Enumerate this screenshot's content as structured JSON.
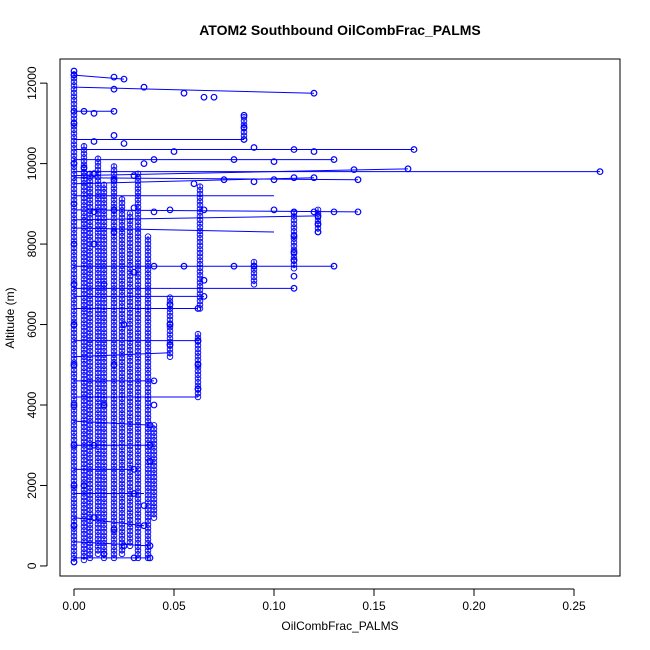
{
  "chart_data": {
    "type": "scatter",
    "title": "ATOM2 Southbound OilCombFrac_PALMS",
    "xlabel": "OilCombFrac_PALMS",
    "ylabel": "Altitude (m)",
    "xlim": [
      -0.007,
      0.273
    ],
    "ylim": [
      -250,
      12600
    ],
    "xticks": [
      0.0,
      0.05,
      0.1,
      0.15,
      0.2,
      0.25
    ],
    "xtick_labels": [
      "0.00",
      "0.05",
      "0.10",
      "0.15",
      "0.20",
      "0.25"
    ],
    "yticks": [
      0,
      2000,
      4000,
      6000,
      8000,
      10000,
      12000
    ],
    "ytick_labels": [
      "0",
      "2000",
      "4000",
      "6000",
      "8000",
      "10000",
      "12000"
    ],
    "grid": false,
    "legend": "none",
    "series_color": "#0000ff",
    "marker": "open-circle",
    "points": [
      [
        0.0,
        12300
      ],
      [
        0.0,
        12200
      ],
      [
        0.02,
        12150
      ],
      [
        0.025,
        12100
      ],
      [
        0.035,
        11900
      ],
      [
        0.02,
        11850
      ],
      [
        0.12,
        11750
      ],
      [
        0.055,
        11750
      ],
      [
        0.065,
        11650
      ],
      [
        0.07,
        11650
      ],
      [
        0.0,
        11300
      ],
      [
        0.005,
        11300
      ],
      [
        0.01,
        11250
      ],
      [
        0.02,
        11300
      ],
      [
        0.085,
        11200
      ],
      [
        0.085,
        10900
      ],
      [
        0.085,
        10600
      ],
      [
        0.01,
        10550
      ],
      [
        0.02,
        10700
      ],
      [
        0.025,
        10500
      ],
      [
        0.05,
        10300
      ],
      [
        0.09,
        10400
      ],
      [
        0.11,
        10350
      ],
      [
        0.12,
        10300
      ],
      [
        0.17,
        10350
      ],
      [
        0.13,
        10100
      ],
      [
        0.08,
        10100
      ],
      [
        0.1,
        10050
      ],
      [
        0.04,
        10100
      ],
      [
        0.035,
        10000
      ],
      [
        0.263,
        9800
      ],
      [
        0.167,
        9870
      ],
      [
        0.14,
        9850
      ],
      [
        0.12,
        9650
      ],
      [
        0.11,
        9650
      ],
      [
        0.1,
        9600
      ],
      [
        0.142,
        9600
      ],
      [
        0.09,
        9550
      ],
      [
        0.075,
        9600
      ],
      [
        0.06,
        9500
      ],
      [
        0.03,
        9700
      ],
      [
        0.02,
        9600
      ],
      [
        0.01,
        9750
      ],
      [
        0.005,
        9900
      ],
      [
        0.142,
        8800
      ],
      [
        0.13,
        8800
      ],
      [
        0.12,
        8800
      ],
      [
        0.11,
        8800
      ],
      [
        0.1,
        8850
      ],
      [
        0.065,
        8850
      ],
      [
        0.048,
        8850
      ],
      [
        0.04,
        8800
      ],
      [
        0.03,
        8900
      ],
      [
        0.02,
        8850
      ],
      [
        0.01,
        8800
      ],
      [
        0.122,
        8700
      ],
      [
        0.122,
        8500
      ],
      [
        0.122,
        8300
      ],
      [
        0.11,
        8200
      ],
      [
        0.11,
        7800
      ],
      [
        0.11,
        7600
      ],
      [
        0.13,
        7450
      ],
      [
        0.09,
        7450
      ],
      [
        0.08,
        7450
      ],
      [
        0.055,
        7450
      ],
      [
        0.04,
        7450
      ],
      [
        0.11,
        7200
      ],
      [
        0.11,
        6900
      ],
      [
        0.065,
        7100
      ],
      [
        0.065,
        6700
      ],
      [
        0.062,
        6400
      ],
      [
        0.048,
        6500
      ],
      [
        0.048,
        6000
      ],
      [
        0.048,
        5500
      ],
      [
        0.062,
        5600
      ],
      [
        0.062,
        5000
      ],
      [
        0.062,
        4400
      ],
      [
        0.04,
        4600
      ],
      [
        0.04,
        4000
      ],
      [
        0.038,
        3500
      ],
      [
        0.038,
        3000
      ],
      [
        0.038,
        2600
      ],
      [
        0.03,
        2400
      ],
      [
        0.03,
        1800
      ],
      [
        0.035,
        1500
      ],
      [
        0.035,
        1000
      ],
      [
        0.038,
        500
      ],
      [
        0.038,
        200
      ],
      [
        0.03,
        200
      ],
      [
        0.025,
        500
      ],
      [
        0.02,
        900
      ],
      [
        0.015,
        300
      ],
      [
        0.01,
        1200
      ],
      [
        0.005,
        2000
      ],
      [
        0.01,
        3000
      ],
      [
        0.015,
        4000
      ],
      [
        0.02,
        5000
      ],
      [
        0.025,
        6000
      ],
      [
        0.015,
        7000
      ],
      [
        0.01,
        8000
      ],
      [
        0.02,
        8300
      ],
      [
        0.03,
        7300
      ],
      [
        0.0,
        100
      ],
      [
        0.0,
        1000
      ],
      [
        0.0,
        2000
      ],
      [
        0.0,
        3000
      ],
      [
        0.0,
        4000
      ],
      [
        0.0,
        5000
      ],
      [
        0.0,
        6000
      ],
      [
        0.0,
        7000
      ],
      [
        0.0,
        8000
      ],
      [
        0.0,
        9000
      ],
      [
        0.0,
        10000
      ],
      [
        0.0,
        11000
      ]
    ],
    "track_segments": [
      [
        [
          0.0,
          12200
        ],
        [
          0.025,
          12100
        ]
      ],
      [
        [
          0.0,
          11900
        ],
        [
          0.12,
          11750
        ]
      ],
      [
        [
          0.0,
          11300
        ],
        [
          0.02,
          11300
        ]
      ],
      [
        [
          0.0,
          10600
        ],
        [
          0.085,
          10600
        ]
      ],
      [
        [
          0.0,
          10350
        ],
        [
          0.17,
          10350
        ]
      ],
      [
        [
          0.0,
          10100
        ],
        [
          0.13,
          10100
        ]
      ],
      [
        [
          0.0,
          9800
        ],
        [
          0.263,
          9800
        ]
      ],
      [
        [
          0.0,
          9700
        ],
        [
          0.167,
          9870
        ]
      ],
      [
        [
          0.0,
          9650
        ],
        [
          0.142,
          9600
        ]
      ],
      [
        [
          0.0,
          9500
        ],
        [
          0.12,
          9650
        ]
      ],
      [
        [
          0.0,
          9200
        ],
        [
          0.1,
          9200
        ]
      ],
      [
        [
          0.0,
          8850
        ],
        [
          0.142,
          8800
        ]
      ],
      [
        [
          0.0,
          8600
        ],
        [
          0.122,
          8700
        ]
      ],
      [
        [
          0.0,
          8400
        ],
        [
          0.1,
          8300
        ]
      ],
      [
        [
          0.0,
          7450
        ],
        [
          0.13,
          7450
        ]
      ],
      [
        [
          0.0,
          6900
        ],
        [
          0.11,
          6900
        ]
      ],
      [
        [
          0.0,
          6700
        ],
        [
          0.065,
          6700
        ]
      ],
      [
        [
          0.0,
          6400
        ],
        [
          0.062,
          6400
        ]
      ],
      [
        [
          0.0,
          5600
        ],
        [
          0.062,
          5600
        ]
      ],
      [
        [
          0.0,
          5200
        ],
        [
          0.048,
          5300
        ]
      ],
      [
        [
          0.0,
          4600
        ],
        [
          0.04,
          4600
        ]
      ],
      [
        [
          0.0,
          4200
        ],
        [
          0.062,
          4200
        ]
      ],
      [
        [
          0.0,
          3600
        ],
        [
          0.038,
          3500
        ]
      ],
      [
        [
          0.0,
          3000
        ],
        [
          0.038,
          3000
        ]
      ],
      [
        [
          0.0,
          2400
        ],
        [
          0.03,
          2400
        ]
      ],
      [
        [
          0.0,
          1800
        ],
        [
          0.035,
          1800
        ]
      ],
      [
        [
          0.0,
          1200
        ],
        [
          0.035,
          1000
        ]
      ],
      [
        [
          0.0,
          600
        ],
        [
          0.038,
          500
        ]
      ],
      [
        [
          0.0,
          200
        ],
        [
          0.038,
          200
        ]
      ]
    ],
    "vertical_profiles": [
      {
        "x": 0.0,
        "y_from": 100,
        "y_to": 12300
      },
      {
        "x": 0.005,
        "y_from": 150,
        "y_to": 10500
      },
      {
        "x": 0.008,
        "y_from": 200,
        "y_to": 9800
      },
      {
        "x": 0.012,
        "y_from": 300,
        "y_to": 10200
      },
      {
        "x": 0.015,
        "y_from": 200,
        "y_to": 9500
      },
      {
        "x": 0.02,
        "y_from": 200,
        "y_to": 10000
      },
      {
        "x": 0.024,
        "y_from": 300,
        "y_to": 9200
      },
      {
        "x": 0.028,
        "y_from": 500,
        "y_to": 8800
      },
      {
        "x": 0.032,
        "y_from": 200,
        "y_to": 9800
      },
      {
        "x": 0.037,
        "y_from": 200,
        "y_to": 8200
      },
      {
        "x": 0.04,
        "y_from": 1200,
        "y_to": 3500
      },
      {
        "x": 0.048,
        "y_from": 5200,
        "y_to": 6700
      },
      {
        "x": 0.062,
        "y_from": 4200,
        "y_to": 5800
      },
      {
        "x": 0.063,
        "y_from": 6400,
        "y_to": 9500
      },
      {
        "x": 0.085,
        "y_from": 10600,
        "y_to": 11200
      },
      {
        "x": 0.11,
        "y_from": 7400,
        "y_to": 8800
      },
      {
        "x": 0.122,
        "y_from": 8300,
        "y_to": 8900
      },
      {
        "x": 0.09,
        "y_from": 7000,
        "y_to": 7600
      }
    ]
  }
}
